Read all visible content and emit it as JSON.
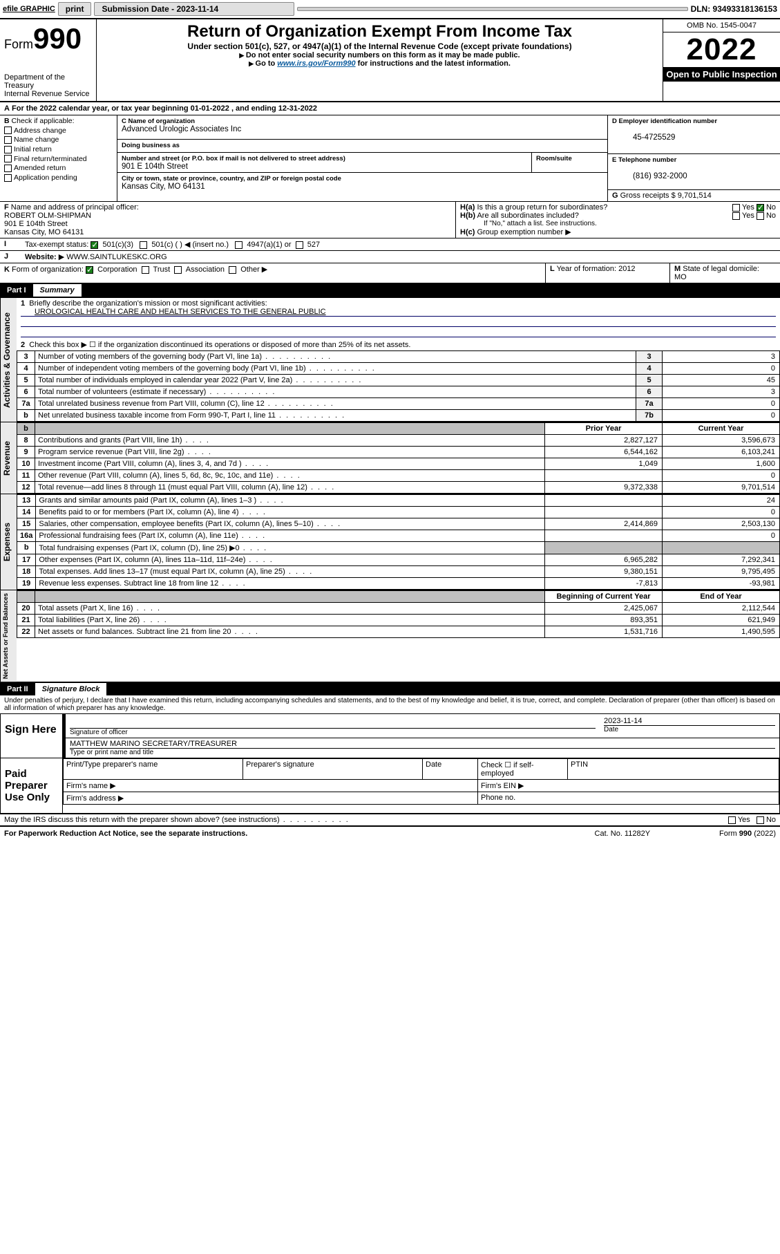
{
  "topbar": {
    "efile": "efile GRAPHIC",
    "print": "print",
    "subdate_label": "Submission Date - 2023-11-14",
    "dln": "DLN: 93493318136153"
  },
  "header": {
    "form_prefix": "Form",
    "form_number": "990",
    "dept": "Department of the Treasury",
    "irs": "Internal Revenue Service",
    "title": "Return of Organization Exempt From Income Tax",
    "subtitle": "Under section 501(c), 527, or 4947(a)(1) of the Internal Revenue Code (except private foundations)",
    "note1": "Do not enter social security numbers on this form as it may be made public.",
    "note2_pre": "Go to ",
    "note2_link": "www.irs.gov/Form990",
    "note2_post": " for instructions and the latest information.",
    "omb": "OMB No. 1545-0047",
    "year": "2022",
    "open": "Open to Public Inspection"
  },
  "period": {
    "line": "For the 2022 calendar year, or tax year beginning 01-01-2022   , and ending 12-31-2022"
  },
  "boxB": {
    "label": "Check if applicable:",
    "items": [
      "Address change",
      "Name change",
      "Initial return",
      "Final return/terminated",
      "Amended return",
      "Application pending"
    ]
  },
  "boxC": {
    "name_label": "Name of organization",
    "name": "Advanced Urologic Associates Inc",
    "dba_label": "Doing business as",
    "addr_label": "Number and street (or P.O. box if mail is not delivered to street address)",
    "room_label": "Room/suite",
    "street": "901 E 104th Street",
    "city_label": "City or town, state or province, country, and ZIP or foreign postal code",
    "city": "Kansas City, MO  64131"
  },
  "boxD": {
    "label": "Employer identification number",
    "val": "45-4725529"
  },
  "boxE": {
    "label": "Telephone number",
    "val": "(816) 932-2000"
  },
  "boxG": {
    "label": "Gross receipts $",
    "val": "9,701,514"
  },
  "boxF": {
    "label": "Name and address of principal officer:",
    "name": "ROBERT OLM-SHIPMAN",
    "street": "901 E 104th Street",
    "city": "Kansas City, MO  64131"
  },
  "boxH": {
    "a": "Is this a group return for subordinates?",
    "b": "Are all subordinates included?",
    "c_label": "Group exemption number",
    "ifno": "If \"No,\" attach a list. See instructions."
  },
  "boxI": {
    "label": "Tax-exempt status:",
    "opts": [
      "501(c)(3)",
      "501(c) (  ) ◀ (insert no.)",
      "4947(a)(1) or",
      "527"
    ]
  },
  "boxJ": {
    "label": "Website:",
    "val": "WWW.SAINTLUKESKC.ORG"
  },
  "boxK": {
    "label": "Form of organization:",
    "opts": [
      "Corporation",
      "Trust",
      "Association",
      "Other ▶"
    ]
  },
  "boxL": {
    "label": "Year of formation:",
    "val": "2012"
  },
  "boxM": {
    "label": "State of legal domicile:",
    "val": "MO"
  },
  "partI": {
    "title": "Part I",
    "name": "Summary",
    "l1_label": "Briefly describe the organization's mission or most significant activities:",
    "l1_val": "UROLOGICAL HEALTH CARE AND HEALTH SERVICES TO THE GENERAL PUBLIC",
    "l2": "Check this box ▶ ☐  if the organization discontinued its operations or disposed of more than 25% of its net assets.",
    "gov": [
      {
        "n": "3",
        "t": "Number of voting members of the governing body (Part VI, line 1a)",
        "v": "3"
      },
      {
        "n": "4",
        "t": "Number of independent voting members of the governing body (Part VI, line 1b)",
        "v": "0"
      },
      {
        "n": "5",
        "t": "Total number of individuals employed in calendar year 2022 (Part V, line 2a)",
        "v": "45"
      },
      {
        "n": "6",
        "t": "Total number of volunteers (estimate if necessary)",
        "v": "3"
      },
      {
        "n": "7a",
        "t": "Total unrelated business revenue from Part VIII, column (C), line 12",
        "v": "0"
      },
      {
        "n": "b",
        "t": "Net unrelated business taxable income from Form 990-T, Part I, line 11",
        "rn": "7b",
        "v": "0"
      }
    ],
    "col_prior": "Prior Year",
    "col_curr": "Current Year",
    "rev": [
      {
        "n": "8",
        "t": "Contributions and grants (Part VIII, line 1h)",
        "p": "2,827,127",
        "c": "3,596,673"
      },
      {
        "n": "9",
        "t": "Program service revenue (Part VIII, line 2g)",
        "p": "6,544,162",
        "c": "6,103,241"
      },
      {
        "n": "10",
        "t": "Investment income (Part VIII, column (A), lines 3, 4, and 7d )",
        "p": "1,049",
        "c": "1,600"
      },
      {
        "n": "11",
        "t": "Other revenue (Part VIII, column (A), lines 5, 6d, 8c, 9c, 10c, and 11e)",
        "p": "",
        "c": "0"
      },
      {
        "n": "12",
        "t": "Total revenue—add lines 8 through 11 (must equal Part VIII, column (A), line 12)",
        "p": "9,372,338",
        "c": "9,701,514"
      }
    ],
    "exp": [
      {
        "n": "13",
        "t": "Grants and similar amounts paid (Part IX, column (A), lines 1–3 )",
        "p": "",
        "c": "24"
      },
      {
        "n": "14",
        "t": "Benefits paid to or for members (Part IX, column (A), line 4)",
        "p": "",
        "c": "0"
      },
      {
        "n": "15",
        "t": "Salaries, other compensation, employee benefits (Part IX, column (A), lines 5–10)",
        "p": "2,414,869",
        "c": "2,503,130"
      },
      {
        "n": "16a",
        "t": "Professional fundraising fees (Part IX, column (A), line 11e)",
        "p": "",
        "c": "0"
      },
      {
        "n": "b",
        "t": "Total fundraising expenses (Part IX, column (D), line 25) ▶0",
        "p": "shade",
        "c": "shade"
      },
      {
        "n": "17",
        "t": "Other expenses (Part IX, column (A), lines 11a–11d, 11f–24e)",
        "p": "6,965,282",
        "c": "7,292,341"
      },
      {
        "n": "18",
        "t": "Total expenses. Add lines 13–17 (must equal Part IX, column (A), line 25)",
        "p": "9,380,151",
        "c": "9,795,495"
      },
      {
        "n": "19",
        "t": "Revenue less expenses. Subtract line 18 from line 12",
        "p": "-7,813",
        "c": "-93,981"
      }
    ],
    "col_boy": "Beginning of Current Year",
    "col_eoy": "End of Year",
    "net": [
      {
        "n": "20",
        "t": "Total assets (Part X, line 16)",
        "p": "2,425,067",
        "c": "2,112,544"
      },
      {
        "n": "21",
        "t": "Total liabilities (Part X, line 26)",
        "p": "893,351",
        "c": "621,949"
      },
      {
        "n": "22",
        "t": "Net assets or fund balances. Subtract line 21 from line 20",
        "p": "1,531,716",
        "c": "1,490,595"
      }
    ],
    "vlabels": {
      "gov": "Activities & Governance",
      "rev": "Revenue",
      "exp": "Expenses",
      "net": "Net Assets or Fund Balances"
    }
  },
  "partII": {
    "title": "Part II",
    "name": "Signature Block",
    "jurat": "Under penalties of perjury, I declare that I have examined this return, including accompanying schedules and statements, and to the best of my knowledge and belief, it is true, correct, and complete. Declaration of preparer (other than officer) is based on all information of which preparer has any knowledge.",
    "sign_here": "Sign Here",
    "sig_officer": "Signature of officer",
    "sig_date": "2023-11-14",
    "date_label": "Date",
    "officer_name": "MATTHEW MARINO  SECRETARY/TREASURER",
    "officer_name_label": "Type or print name and title",
    "paid": "Paid Preparer Use Only",
    "prep_cols": [
      "Print/Type preparer's name",
      "Preparer's signature",
      "Date"
    ],
    "check_self": "Check ☐ if self-employed",
    "ptin": "PTIN",
    "firm_name": "Firm's name  ▶",
    "firm_ein": "Firm's EIN ▶",
    "firm_addr": "Firm's address ▶",
    "phone": "Phone no.",
    "discuss": "May the IRS discuss this return with the preparer shown above? (see instructions)",
    "yes": "Yes",
    "no": "No"
  },
  "footer": {
    "pra": "For Paperwork Reduction Act Notice, see the separate instructions.",
    "cat": "Cat. No. 11282Y",
    "form": "Form 990 (2022)"
  }
}
